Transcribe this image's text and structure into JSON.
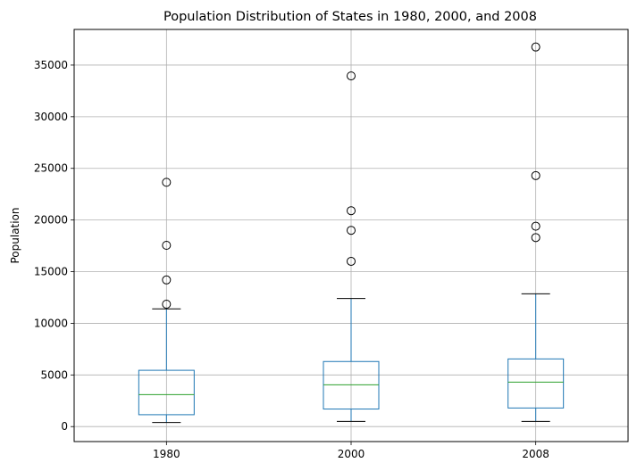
{
  "chart_data": {
    "type": "box",
    "title": "Population Distribution of States in 1980, 2000, and 2008",
    "xlabel": "",
    "ylabel": "Population",
    "ylim": [
      -1450,
      38450
    ],
    "y_ticks": [
      0,
      5000,
      10000,
      15000,
      20000,
      25000,
      30000,
      35000
    ],
    "grid": true,
    "categories": [
      "1980",
      "2000",
      "2008"
    ],
    "boxes": [
      {
        "category": "1980",
        "whisker_low": 400,
        "q1": 1150,
        "median": 3100,
        "q3": 5450,
        "whisker_high": 11400,
        "outliers": [
          11850,
          14200,
          17550,
          23650
        ]
      },
      {
        "category": "2000",
        "whisker_low": 500,
        "q1": 1700,
        "median": 4050,
        "q3": 6300,
        "whisker_high": 12400,
        "outliers": [
          16000,
          19000,
          20900,
          33950
        ]
      },
      {
        "category": "2008",
        "whisker_low": 500,
        "q1": 1800,
        "median": 4300,
        "q3": 6550,
        "whisker_high": 12850,
        "outliers": [
          18300,
          19400,
          24300,
          36750
        ]
      }
    ],
    "colors": {
      "box": "#1f77b4",
      "median": "#2ca02c",
      "whisker_cap": "#000000",
      "outlier": "#000000",
      "grid": "#b0b0b0"
    }
  }
}
